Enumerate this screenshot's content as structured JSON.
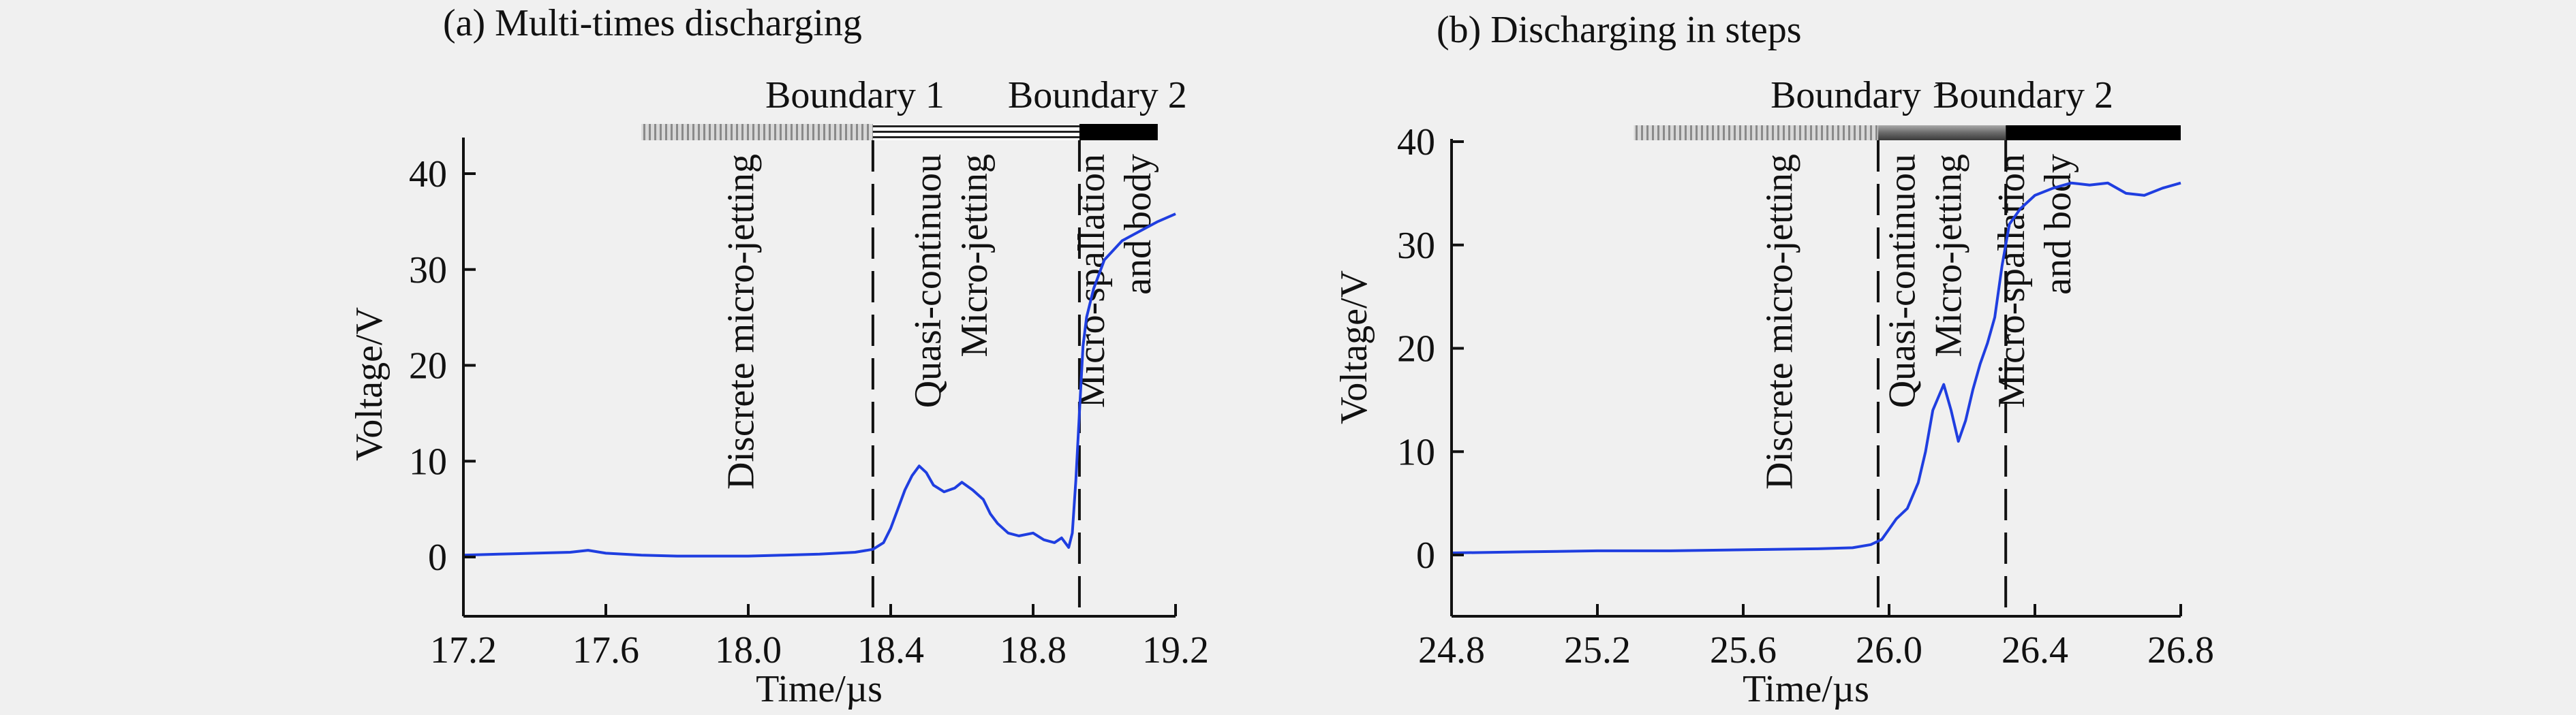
{
  "chart_data": [
    {
      "type": "line",
      "title": "(a) Multi-times discharging",
      "xlabel": "Time/µs",
      "ylabel": "Voltage/V",
      "xlim": [
        17.2,
        19.2
      ],
      "ylim": [
        -4,
        44
      ],
      "xticks": [
        "17.2",
        "17.6",
        "18.0",
        "18.4",
        "18.8",
        "19.2"
      ],
      "yticks": [
        "0",
        "10",
        "20",
        "30",
        "40"
      ],
      "grid": false,
      "boundaries": [
        {
          "label": "Boundary 1",
          "x": 18.35
        },
        {
          "label": "Boundary 2",
          "x": 18.93
        }
      ],
      "stages": [
        {
          "from": 17.7,
          "to": 18.35,
          "style": "hatched"
        },
        {
          "from": 18.35,
          "to": 18.93,
          "style": "lined"
        },
        {
          "from": 18.93,
          "to": 19.15,
          "style": "solid"
        }
      ],
      "region_labels": [
        {
          "lines": [
            "Discrete micro-jetting"
          ],
          "x": 17.98
        },
        {
          "lines": [
            "Quasi-continuou",
            "Micro-jetting"
          ],
          "x": 18.57
        },
        {
          "lines": [
            "Micro-spallation",
            "and body"
          ],
          "x": 19.03
        }
      ],
      "series": [
        {
          "color": "#1f3ee0",
          "x": [
            17.2,
            17.3,
            17.4,
            17.5,
            17.55,
            17.6,
            17.7,
            17.8,
            17.9,
            18.0,
            18.1,
            18.2,
            18.3,
            18.35,
            18.38,
            18.4,
            18.42,
            18.44,
            18.46,
            18.48,
            18.5,
            18.52,
            18.55,
            18.58,
            18.6,
            18.63,
            18.66,
            18.68,
            18.7,
            18.73,
            18.76,
            18.8,
            18.83,
            18.86,
            18.88,
            18.9,
            18.91,
            18.92,
            18.93,
            18.94,
            18.95,
            18.97,
            19.0,
            19.05,
            19.1,
            19.15,
            19.2
          ],
          "y": [
            0.2,
            0.3,
            0.4,
            0.5,
            0.7,
            0.4,
            0.2,
            0.1,
            0.1,
            0.1,
            0.2,
            0.3,
            0.5,
            0.8,
            1.5,
            3.0,
            5.0,
            7.0,
            8.5,
            9.5,
            8.8,
            7.5,
            6.8,
            7.2,
            7.8,
            7.0,
            6.0,
            4.5,
            3.5,
            2.5,
            2.2,
            2.5,
            1.8,
            1.5,
            2.0,
            1.0,
            2.5,
            8.0,
            15.0,
            22.0,
            25.0,
            28.0,
            31.0,
            33.0,
            34.0,
            35.0,
            35.8
          ]
        }
      ]
    },
    {
      "type": "line",
      "title": "(b) Discharging in steps",
      "xlabel": "Time/µs",
      "ylabel": "Voltage/V",
      "xlim": [
        24.8,
        26.8
      ],
      "ylim": [
        -4,
        42
      ],
      "xticks": [
        "24.8",
        "25.2",
        "25.6",
        "26.0",
        "26.4",
        "26.8"
      ],
      "yticks": [
        "0",
        "10",
        "20",
        "30",
        "40"
      ],
      "grid": false,
      "boundaries": [
        {
          "label": "Boundary 1",
          "x": 25.97
        },
        {
          "label": "Boundary 2",
          "x": 26.32
        }
      ],
      "stages": [
        {
          "from": 25.3,
          "to": 25.97,
          "style": "hatched"
        },
        {
          "from": 25.97,
          "to": 26.32,
          "style": "gray"
        },
        {
          "from": 26.32,
          "to": 26.8,
          "style": "solid"
        }
      ],
      "region_labels": [
        {
          "lines": [
            "Discrete micro-jetting"
          ],
          "x": 25.7
        },
        {
          "lines": [
            "Quasi-continuou",
            "Micro-jetting"
          ],
          "x": 26.1
        },
        {
          "lines": [
            "Micro-spallation",
            "and body"
          ],
          "x": 26.4
        }
      ],
      "series": [
        {
          "color": "#1f3ee0",
          "x": [
            24.8,
            25.0,
            25.2,
            25.4,
            25.6,
            25.8,
            25.9,
            25.95,
            25.98,
            26.0,
            26.02,
            26.05,
            26.08,
            26.1,
            26.12,
            26.15,
            26.17,
            26.19,
            26.21,
            26.23,
            26.25,
            26.27,
            26.29,
            26.31,
            26.33,
            26.36,
            26.4,
            26.45,
            26.5,
            26.55,
            26.6,
            26.65,
            26.7,
            26.75,
            26.8
          ],
          "y": [
            0.2,
            0.3,
            0.4,
            0.4,
            0.5,
            0.6,
            0.7,
            1.0,
            1.5,
            2.5,
            3.5,
            4.5,
            7.0,
            10.0,
            14.0,
            16.5,
            14.0,
            11.0,
            13.0,
            16.0,
            18.5,
            20.5,
            23.0,
            28.0,
            32.0,
            33.5,
            34.8,
            35.5,
            36.0,
            35.8,
            36.0,
            35.0,
            34.8,
            35.5,
            36.0
          ]
        }
      ]
    }
  ]
}
